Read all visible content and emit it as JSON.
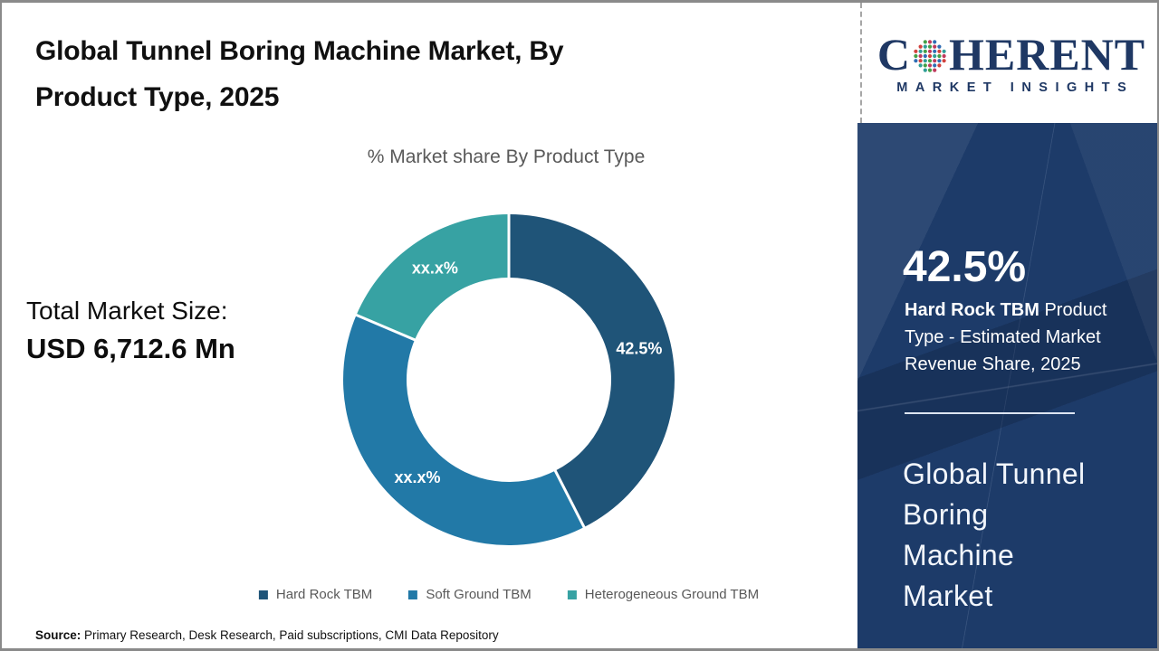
{
  "header": {
    "title_lines": [
      "Global Tunnel Boring Machine Market, By",
      "Product Type, 2025"
    ]
  },
  "logo": {
    "word_start": "C",
    "word_end": "HERENT",
    "tagline": "MARKET INSIGHTS",
    "color": "#1F3864",
    "globe_dot_colors": [
      "#44a046",
      "#bf3a5e",
      "#2e6db4",
      "#d2413d",
      "#2f9e97"
    ]
  },
  "main": {
    "total_label": "Total Market Size:",
    "total_value": "USD 6,712.6 Mn",
    "source_prefix": "Source:",
    "source_text": " Primary Research, Desk Research, Paid subscriptions, CMI Data Repository"
  },
  "chart_data": {
    "type": "pie",
    "subtype": "donut",
    "title": "% Market share By Product Type",
    "unit": "%",
    "start_angle_deg": 0,
    "direction": "clockwise",
    "legend_position": "bottom",
    "segments": [
      {
        "name": "Hard Rock TBM",
        "value": 42.5,
        "label": "42.5%",
        "color": "#1F5478"
      },
      {
        "name": "Soft Ground TBM",
        "value": 38.9,
        "label": "xx.x%",
        "color": "#2279A7"
      },
      {
        "name": "Heterogeneous Ground TBM",
        "value": 18.6,
        "label": "xx.x%",
        "color": "#37A2A3"
      }
    ]
  },
  "stats_panel": {
    "background": "#1d3b69",
    "stat_value": "42.5%",
    "stat_segment": "Hard Rock TBM",
    "stat_description": " Product Type - Estimated Market Revenue Share, 2025",
    "market_name_lines": [
      "Global Tunnel",
      "Boring",
      "Machine",
      "Market"
    ]
  }
}
